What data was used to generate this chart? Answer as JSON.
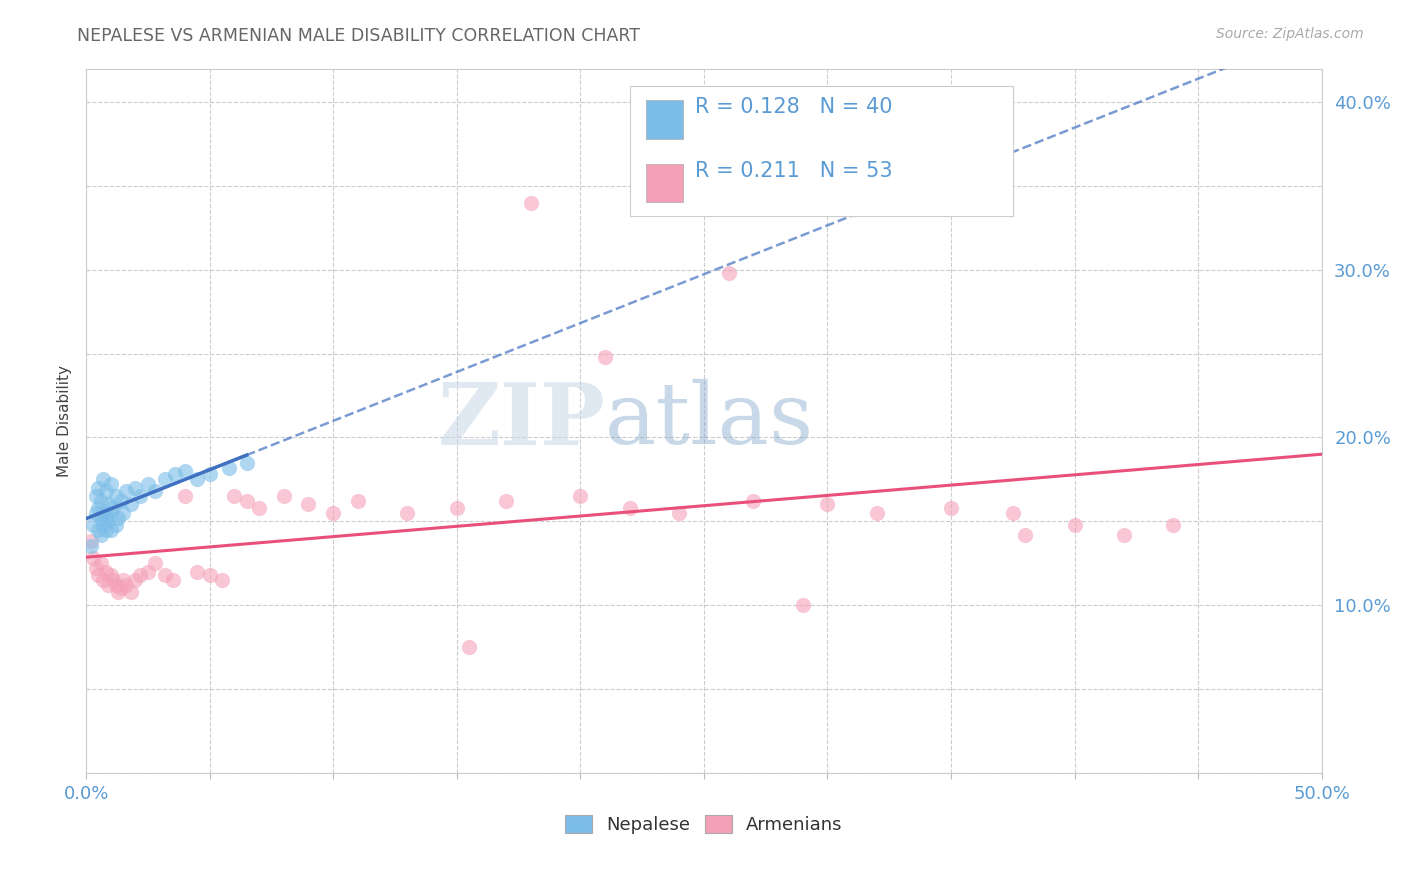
{
  "title": "NEPALESE VS ARMENIAN MALE DISABILITY CORRELATION CHART",
  "source": "Source: ZipAtlas.com",
  "ylabel": "Male Disability",
  "xlim": [
    0.0,
    0.5
  ],
  "ylim": [
    0.0,
    0.42
  ],
  "nepalese_color": "#7BBDE8",
  "armenian_color": "#F4A0B8",
  "nepalese_line_color": "#4070C0",
  "armenian_line_color": "#E8507A",
  "R_nepalese": 0.128,
  "N_nepalese": 40,
  "R_armenian": 0.211,
  "N_armenian": 53,
  "nepalese_x": [
    0.002,
    0.003,
    0.004,
    0.004,
    0.005,
    0.005,
    0.005,
    0.006,
    0.006,
    0.006,
    0.007,
    0.007,
    0.007,
    0.008,
    0.008,
    0.008,
    0.009,
    0.009,
    0.01,
    0.01,
    0.01,
    0.011,
    0.012,
    0.012,
    0.013,
    0.014,
    0.015,
    0.016,
    0.018,
    0.02,
    0.022,
    0.025,
    0.028,
    0.032,
    0.036,
    0.04,
    0.045,
    0.05,
    0.058,
    0.065
  ],
  "nepalese_y": [
    0.135,
    0.148,
    0.155,
    0.165,
    0.145,
    0.158,
    0.17,
    0.142,
    0.152,
    0.162,
    0.148,
    0.155,
    0.175,
    0.145,
    0.153,
    0.168,
    0.15,
    0.16,
    0.145,
    0.155,
    0.172,
    0.158,
    0.148,
    0.165,
    0.152,
    0.162,
    0.155,
    0.168,
    0.16,
    0.17,
    0.165,
    0.172,
    0.168,
    0.175,
    0.178,
    0.18,
    0.175,
    0.178,
    0.182,
    0.185
  ],
  "armenian_x": [
    0.002,
    0.003,
    0.004,
    0.005,
    0.006,
    0.007,
    0.008,
    0.009,
    0.01,
    0.011,
    0.012,
    0.013,
    0.014,
    0.015,
    0.016,
    0.018,
    0.02,
    0.022,
    0.025,
    0.028,
    0.032,
    0.035,
    0.04,
    0.045,
    0.05,
    0.055,
    0.06,
    0.065,
    0.07,
    0.08,
    0.09,
    0.1,
    0.11,
    0.13,
    0.15,
    0.17,
    0.2,
    0.22,
    0.24,
    0.27,
    0.3,
    0.32,
    0.35,
    0.375,
    0.4,
    0.42,
    0.44,
    0.155,
    0.29,
    0.26,
    0.18,
    0.21,
    0.38
  ],
  "armenian_y": [
    0.138,
    0.128,
    0.122,
    0.118,
    0.125,
    0.115,
    0.12,
    0.112,
    0.118,
    0.115,
    0.112,
    0.108,
    0.11,
    0.115,
    0.112,
    0.108,
    0.115,
    0.118,
    0.12,
    0.125,
    0.118,
    0.115,
    0.165,
    0.12,
    0.118,
    0.115,
    0.165,
    0.162,
    0.158,
    0.165,
    0.16,
    0.155,
    0.162,
    0.155,
    0.158,
    0.162,
    0.165,
    0.158,
    0.155,
    0.162,
    0.16,
    0.155,
    0.158,
    0.155,
    0.148,
    0.142,
    0.148,
    0.075,
    0.1,
    0.298,
    0.34,
    0.248,
    0.142
  ],
  "watermark_zip": "ZIP",
  "watermark_atlas": "atlas",
  "background_color": "#FFFFFF",
  "grid_color": "#CCCCCC",
  "text_color_blue": "#5B9BD5",
  "text_color_title": "#666666"
}
